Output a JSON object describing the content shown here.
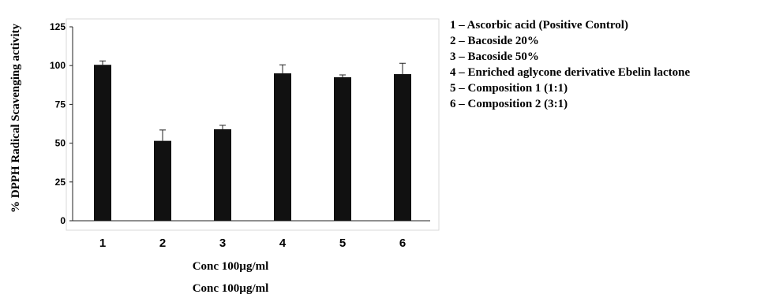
{
  "chart_data": {
    "type": "bar",
    "categories": [
      "1",
      "2",
      "3",
      "4",
      "5",
      "6"
    ],
    "values": [
      100.5,
      51.5,
      59,
      95,
      92.5,
      94.5
    ],
    "errors": [
      2.5,
      7,
      2.5,
      5.5,
      1.5,
      7
    ],
    "ylabel": "% DPPH Radical Scavenging activity",
    "xlabel": "Conc 100µg/ml",
    "xlabel_repeat": "Conc 100µg/ml",
    "ylim": [
      0,
      125
    ],
    "yticks": [
      "0",
      "25",
      "50",
      "75",
      "100",
      "125"
    ],
    "grid": false,
    "bar_color": "#111111",
    "legend_position": "right",
    "legend": [
      "1 – Ascorbic acid (Positive Control)",
      "2 – Bacoside 20%",
      "3 – Bacoside 50%",
      "4 – Enriched aglycone derivative Ebelin lactone",
      "5 – Composition 1 (1:1)",
      "6 – Composition 2 (3:1)"
    ]
  }
}
